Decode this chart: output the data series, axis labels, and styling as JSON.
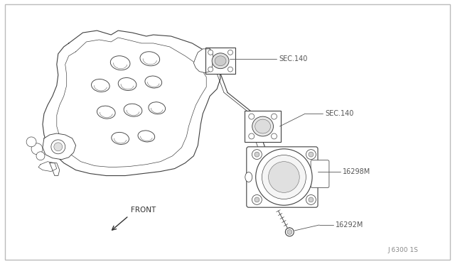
{
  "background_color": "#ffffff",
  "border_color": "#bbbbbb",
  "line_color": "#404040",
  "text_color": "#333333",
  "label_color": "#555555",
  "labels": {
    "sec140_upper": "SEC.140",
    "sec140_lower": "SEC.140",
    "part_16298M": "16298M",
    "part_16292M": "16292M",
    "front_label": "FRONT",
    "diagram_id": "J 6300 1S"
  },
  "figsize": [
    6.4,
    3.72
  ],
  "dpi": 100
}
